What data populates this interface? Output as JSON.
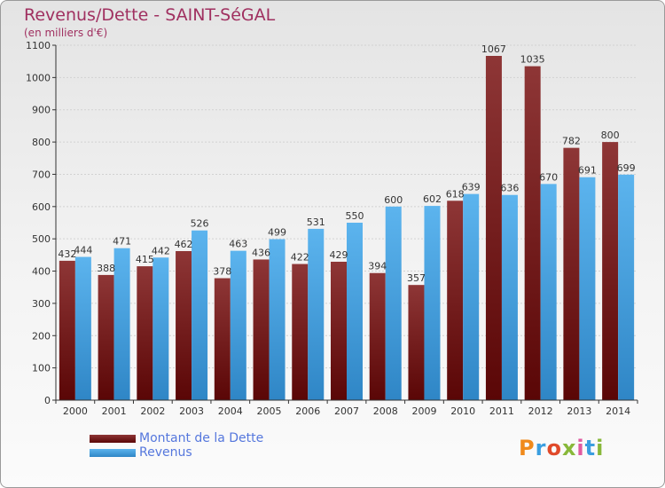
{
  "title": "Revenus/Dette - SAINT-SéGAL",
  "subtitle": "(en milliers d'€)",
  "legend": {
    "dette_label": "Montant de la Dette",
    "revenus_label": "Revenus"
  },
  "logo": {
    "text": "Proxiti"
  },
  "colors": {
    "dette": "#7a1a1a",
    "revenus": "#3a9ee0",
    "title": "#a03060",
    "legend_text": "#5577dd"
  },
  "chart_data": {
    "type": "bar",
    "title": "Revenus/Dette - SAINT-SéGAL",
    "subtitle": "(en milliers d'€)",
    "categories": [
      "2000",
      "2001",
      "2002",
      "2003",
      "2004",
      "2005",
      "2006",
      "2007",
      "2008",
      "2009",
      "2010",
      "2011",
      "2012",
      "2013",
      "2014"
    ],
    "series": [
      {
        "name": "Montant de la Dette",
        "values": [
          432,
          388,
          415,
          462,
          378,
          436,
          422,
          429,
          394,
          357,
          618,
          1067,
          1035,
          782,
          800
        ]
      },
      {
        "name": "Revenus",
        "values": [
          444,
          471,
          442,
          526,
          463,
          499,
          531,
          550,
          600,
          602,
          639,
          636,
          670,
          691,
          699
        ]
      }
    ],
    "ylim": [
      0,
      1100
    ],
    "yticks": [
      0,
      100,
      200,
      300,
      400,
      500,
      600,
      700,
      800,
      900,
      1000,
      1100
    ],
    "grid": true,
    "legend_position": "bottom-left"
  }
}
